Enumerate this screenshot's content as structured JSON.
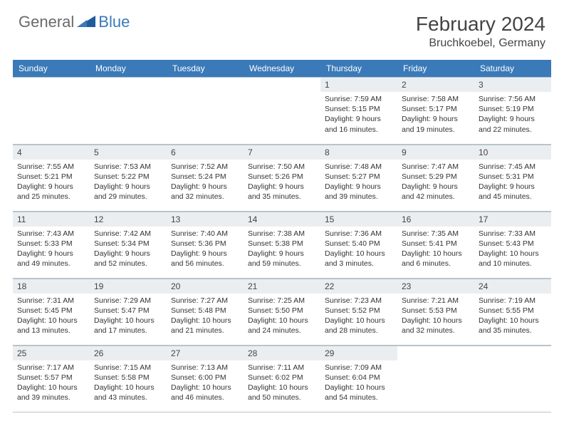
{
  "logo": {
    "general": "General",
    "blue": "Blue"
  },
  "title": {
    "month": "February 2024",
    "location": "Bruchkoebel, Germany"
  },
  "colors": {
    "header_bg": "#3a7ab8",
    "header_text": "#ffffff",
    "daynum_bg": "#ebeef0",
    "border": "#b8c4cc",
    "body_text": "#333333",
    "logo_gray": "#6a6a6a",
    "logo_blue": "#3a7ab8"
  },
  "typography": {
    "title_fontsize": 28,
    "location_fontsize": 16,
    "dayhead_fontsize": 12,
    "daynum_fontsize": 12,
    "body_fontsize": 10.5
  },
  "daynames": [
    "Sunday",
    "Monday",
    "Tuesday",
    "Wednesday",
    "Thursday",
    "Friday",
    "Saturday"
  ],
  "weeks": [
    [
      {
        "empty": true
      },
      {
        "empty": true
      },
      {
        "empty": true
      },
      {
        "empty": true
      },
      {
        "n": "1",
        "sr": "Sunrise: 7:59 AM",
        "ss": "Sunset: 5:15 PM",
        "dl1": "Daylight: 9 hours",
        "dl2": "and 16 minutes."
      },
      {
        "n": "2",
        "sr": "Sunrise: 7:58 AM",
        "ss": "Sunset: 5:17 PM",
        "dl1": "Daylight: 9 hours",
        "dl2": "and 19 minutes."
      },
      {
        "n": "3",
        "sr": "Sunrise: 7:56 AM",
        "ss": "Sunset: 5:19 PM",
        "dl1": "Daylight: 9 hours",
        "dl2": "and 22 minutes."
      }
    ],
    [
      {
        "n": "4",
        "sr": "Sunrise: 7:55 AM",
        "ss": "Sunset: 5:21 PM",
        "dl1": "Daylight: 9 hours",
        "dl2": "and 25 minutes."
      },
      {
        "n": "5",
        "sr": "Sunrise: 7:53 AM",
        "ss": "Sunset: 5:22 PM",
        "dl1": "Daylight: 9 hours",
        "dl2": "and 29 minutes."
      },
      {
        "n": "6",
        "sr": "Sunrise: 7:52 AM",
        "ss": "Sunset: 5:24 PM",
        "dl1": "Daylight: 9 hours",
        "dl2": "and 32 minutes."
      },
      {
        "n": "7",
        "sr": "Sunrise: 7:50 AM",
        "ss": "Sunset: 5:26 PM",
        "dl1": "Daylight: 9 hours",
        "dl2": "and 35 minutes."
      },
      {
        "n": "8",
        "sr": "Sunrise: 7:48 AM",
        "ss": "Sunset: 5:27 PM",
        "dl1": "Daylight: 9 hours",
        "dl2": "and 39 minutes."
      },
      {
        "n": "9",
        "sr": "Sunrise: 7:47 AM",
        "ss": "Sunset: 5:29 PM",
        "dl1": "Daylight: 9 hours",
        "dl2": "and 42 minutes."
      },
      {
        "n": "10",
        "sr": "Sunrise: 7:45 AM",
        "ss": "Sunset: 5:31 PM",
        "dl1": "Daylight: 9 hours",
        "dl2": "and 45 minutes."
      }
    ],
    [
      {
        "n": "11",
        "sr": "Sunrise: 7:43 AM",
        "ss": "Sunset: 5:33 PM",
        "dl1": "Daylight: 9 hours",
        "dl2": "and 49 minutes."
      },
      {
        "n": "12",
        "sr": "Sunrise: 7:42 AM",
        "ss": "Sunset: 5:34 PM",
        "dl1": "Daylight: 9 hours",
        "dl2": "and 52 minutes."
      },
      {
        "n": "13",
        "sr": "Sunrise: 7:40 AM",
        "ss": "Sunset: 5:36 PM",
        "dl1": "Daylight: 9 hours",
        "dl2": "and 56 minutes."
      },
      {
        "n": "14",
        "sr": "Sunrise: 7:38 AM",
        "ss": "Sunset: 5:38 PM",
        "dl1": "Daylight: 9 hours",
        "dl2": "and 59 minutes."
      },
      {
        "n": "15",
        "sr": "Sunrise: 7:36 AM",
        "ss": "Sunset: 5:40 PM",
        "dl1": "Daylight: 10 hours",
        "dl2": "and 3 minutes."
      },
      {
        "n": "16",
        "sr": "Sunrise: 7:35 AM",
        "ss": "Sunset: 5:41 PM",
        "dl1": "Daylight: 10 hours",
        "dl2": "and 6 minutes."
      },
      {
        "n": "17",
        "sr": "Sunrise: 7:33 AM",
        "ss": "Sunset: 5:43 PM",
        "dl1": "Daylight: 10 hours",
        "dl2": "and 10 minutes."
      }
    ],
    [
      {
        "n": "18",
        "sr": "Sunrise: 7:31 AM",
        "ss": "Sunset: 5:45 PM",
        "dl1": "Daylight: 10 hours",
        "dl2": "and 13 minutes."
      },
      {
        "n": "19",
        "sr": "Sunrise: 7:29 AM",
        "ss": "Sunset: 5:47 PM",
        "dl1": "Daylight: 10 hours",
        "dl2": "and 17 minutes."
      },
      {
        "n": "20",
        "sr": "Sunrise: 7:27 AM",
        "ss": "Sunset: 5:48 PM",
        "dl1": "Daylight: 10 hours",
        "dl2": "and 21 minutes."
      },
      {
        "n": "21",
        "sr": "Sunrise: 7:25 AM",
        "ss": "Sunset: 5:50 PM",
        "dl1": "Daylight: 10 hours",
        "dl2": "and 24 minutes."
      },
      {
        "n": "22",
        "sr": "Sunrise: 7:23 AM",
        "ss": "Sunset: 5:52 PM",
        "dl1": "Daylight: 10 hours",
        "dl2": "and 28 minutes."
      },
      {
        "n": "23",
        "sr": "Sunrise: 7:21 AM",
        "ss": "Sunset: 5:53 PM",
        "dl1": "Daylight: 10 hours",
        "dl2": "and 32 minutes."
      },
      {
        "n": "24",
        "sr": "Sunrise: 7:19 AM",
        "ss": "Sunset: 5:55 PM",
        "dl1": "Daylight: 10 hours",
        "dl2": "and 35 minutes."
      }
    ],
    [
      {
        "n": "25",
        "sr": "Sunrise: 7:17 AM",
        "ss": "Sunset: 5:57 PM",
        "dl1": "Daylight: 10 hours",
        "dl2": "and 39 minutes."
      },
      {
        "n": "26",
        "sr": "Sunrise: 7:15 AM",
        "ss": "Sunset: 5:58 PM",
        "dl1": "Daylight: 10 hours",
        "dl2": "and 43 minutes."
      },
      {
        "n": "27",
        "sr": "Sunrise: 7:13 AM",
        "ss": "Sunset: 6:00 PM",
        "dl1": "Daylight: 10 hours",
        "dl2": "and 46 minutes."
      },
      {
        "n": "28",
        "sr": "Sunrise: 7:11 AM",
        "ss": "Sunset: 6:02 PM",
        "dl1": "Daylight: 10 hours",
        "dl2": "and 50 minutes."
      },
      {
        "n": "29",
        "sr": "Sunrise: 7:09 AM",
        "ss": "Sunset: 6:04 PM",
        "dl1": "Daylight: 10 hours",
        "dl2": "and 54 minutes."
      },
      {
        "empty": true
      },
      {
        "empty": true
      }
    ]
  ]
}
